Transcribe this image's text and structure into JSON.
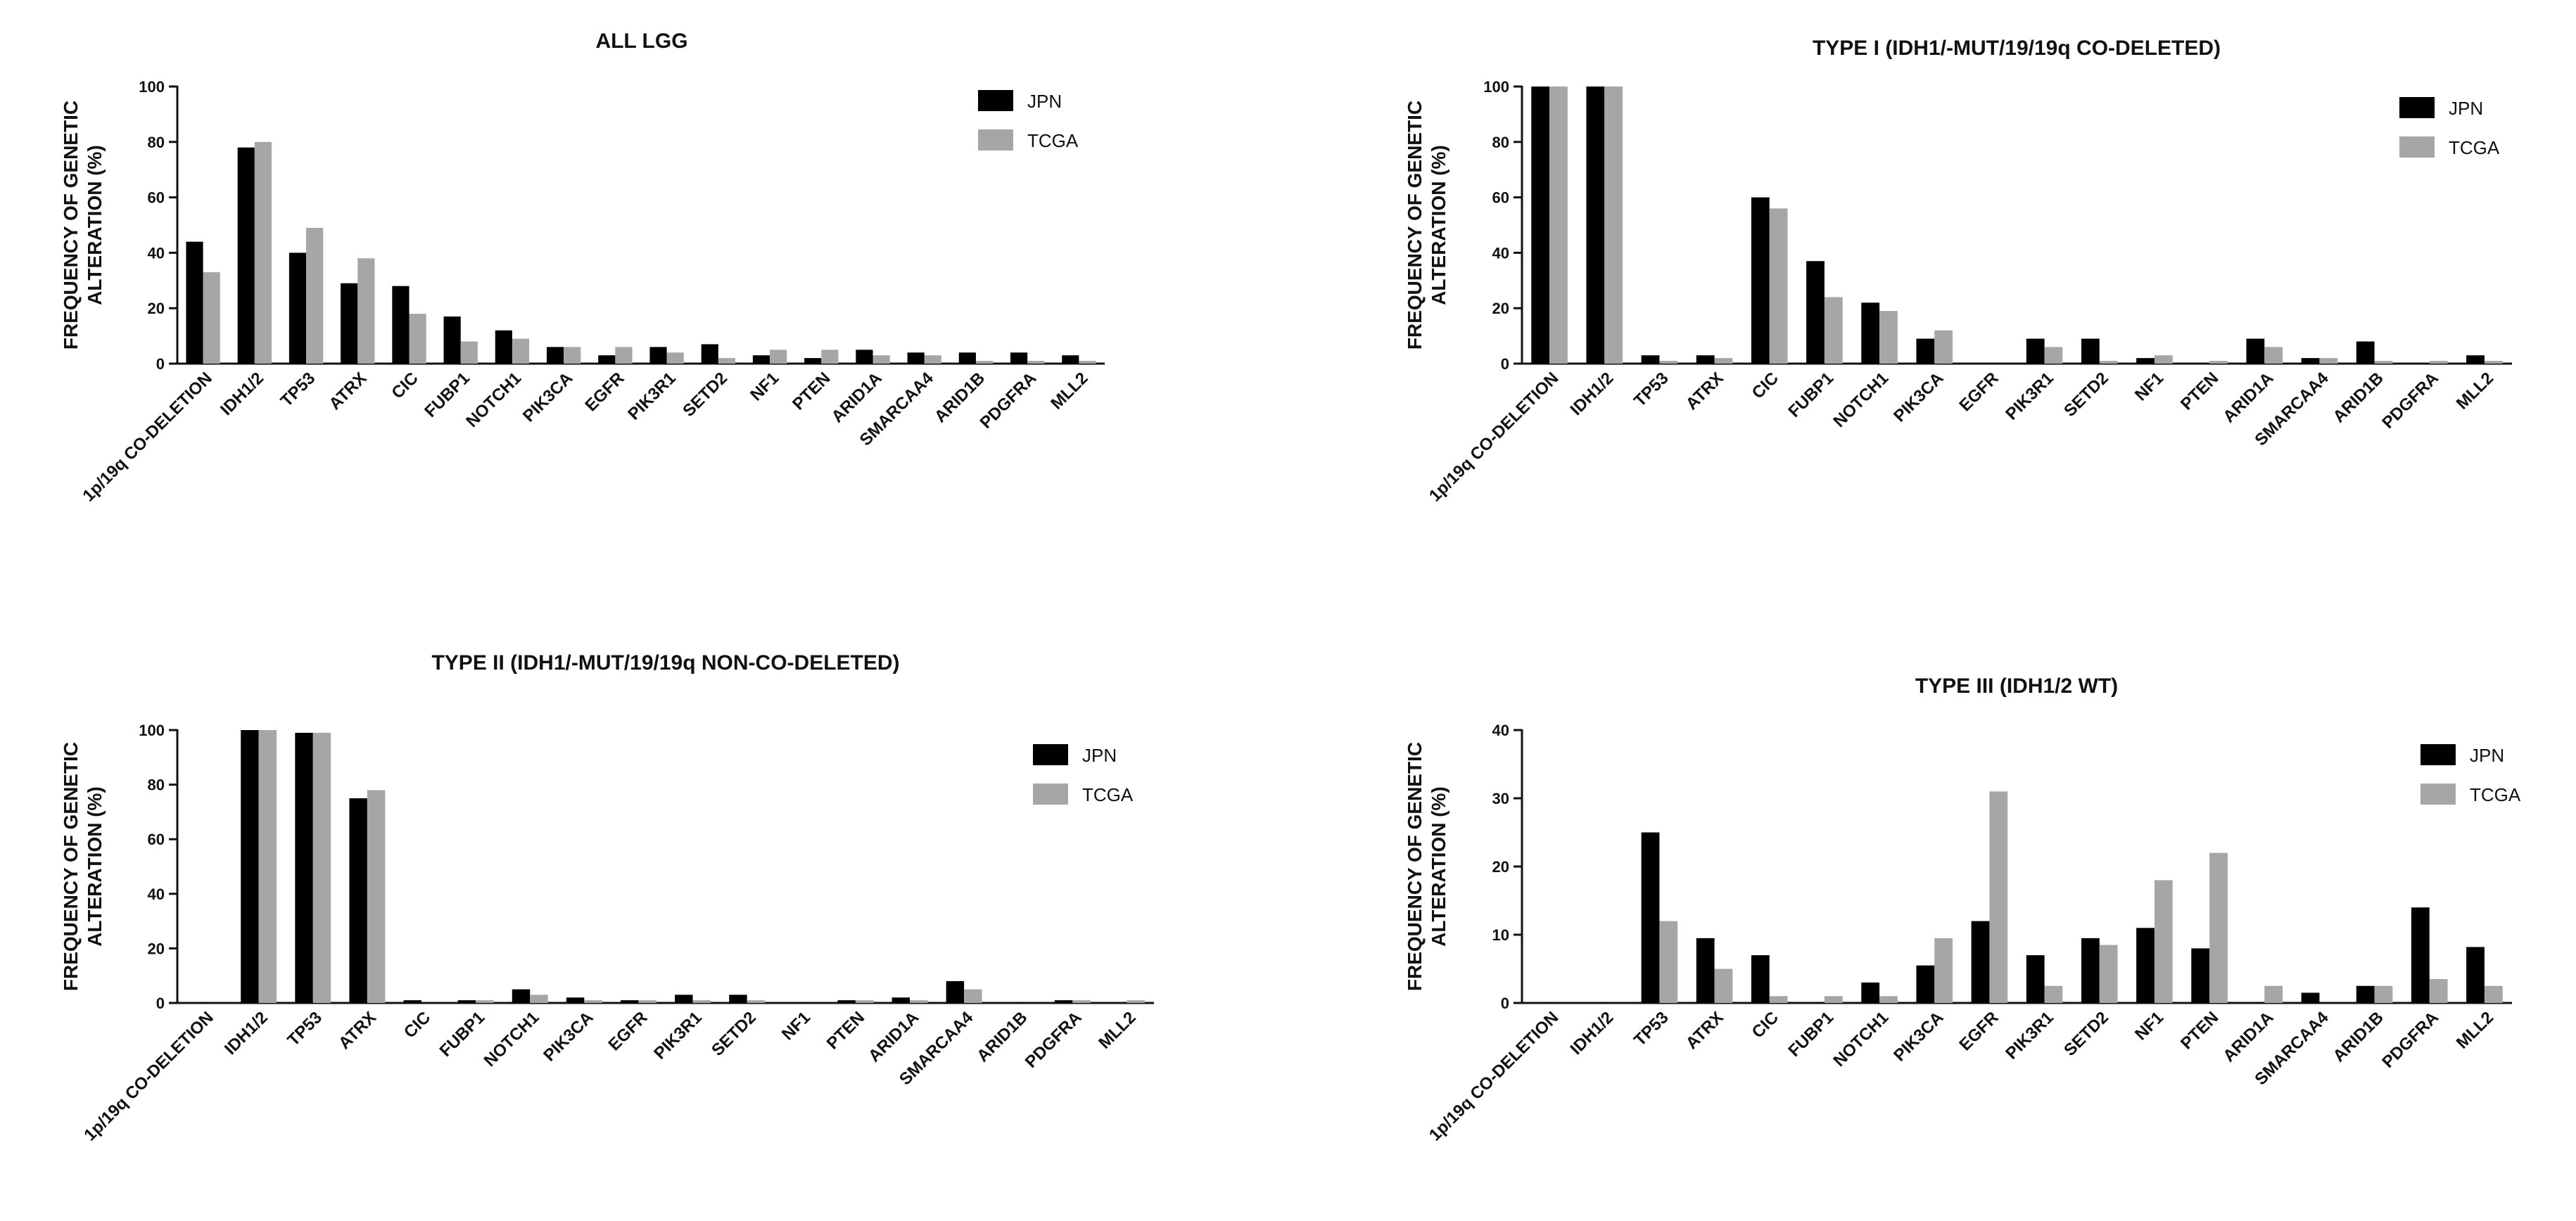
{
  "chart_data": [
    {
      "type": "bar",
      "title": "ALL  LGG",
      "ylabel": "FREQUENCY OF GENETIC ALTERATION (%)",
      "ylabel_lines": [
        "FREQUENCY OF GENETIC",
        "ALTERATION (%)"
      ],
      "ylim": [
        0,
        100
      ],
      "yticks": [
        0,
        20,
        40,
        60,
        80,
        100
      ],
      "categories": [
        "1p/19q CO-DELETION",
        "IDH1/2",
        "TP53",
        "ATRX",
        "CIC",
        "FUBP1",
        "NOTCH1",
        "PIK3CA",
        "EGFR",
        "PIK3R1",
        "SETD2",
        "NF1",
        "PTEN",
        "ARID1A",
        "SMARCAA4",
        "ARID1B",
        "PDGFRA",
        "MLL2"
      ],
      "series": [
        {
          "name": "JPN",
          "color": "#000000",
          "values": [
            44,
            78,
            40,
            29,
            28,
            17,
            12,
            6,
            3,
            6,
            7,
            3,
            2,
            5,
            4,
            4,
            4,
            3
          ]
        },
        {
          "name": "TCGA",
          "color": "#a6a6a6",
          "values": [
            33,
            80,
            49,
            38,
            18,
            8,
            9,
            6,
            6,
            4,
            2,
            5,
            5,
            3,
            3,
            1,
            1,
            1
          ]
        }
      ]
    },
    {
      "type": "bar",
      "title": "TYPE I (IDH1/-MUT/19/19q CO-DELETED)",
      "ylabel": "FREQUENCY OF GENETIC ALTERATION (%)",
      "ylabel_lines": [
        "FREQUENCY OF GENETIC",
        "ALTERATION (%)"
      ],
      "ylim": [
        0,
        100
      ],
      "yticks": [
        0,
        20,
        40,
        60,
        80,
        100
      ],
      "categories": [
        "1p/19q CO-DELETION",
        "IDH1/2",
        "TP53",
        "ATRX",
        "CIC",
        "FUBP1",
        "NOTCH1",
        "PIK3CA",
        "EGFR",
        "PIK3R1",
        "SETD2",
        "NF1",
        "PTEN",
        "ARID1A",
        "SMARCAA4",
        "ARID1B",
        "PDGFRA",
        "MLL2"
      ],
      "series": [
        {
          "name": "JPN",
          "color": "#000000",
          "values": [
            100,
            100,
            3,
            3,
            60,
            37,
            22,
            9,
            0,
            9,
            9,
            2,
            0,
            9,
            2,
            8,
            0,
            3
          ]
        },
        {
          "name": "TCGA",
          "color": "#a6a6a6",
          "values": [
            100,
            100,
            1,
            2,
            56,
            24,
            19,
            12,
            0,
            6,
            1,
            3,
            1,
            6,
            2,
            1,
            1,
            1
          ]
        }
      ]
    },
    {
      "type": "bar",
      "title": "TYPE II (IDH1/-MUT/19/19q NON-CO-DELETED)",
      "ylabel": "FREQUENCY OF GENETIC ALTERATION (%)",
      "ylabel_lines": [
        "FREQUENCY OF GENETIC",
        "ALTERATION (%)"
      ],
      "ylim": [
        0,
        100
      ],
      "yticks": [
        0,
        20,
        40,
        60,
        80,
        100
      ],
      "categories": [
        "1p/19q CO-DELETION",
        "IDH1/2",
        "TP53",
        "ATRX",
        "CIC",
        "FUBP1",
        "NOTCH1",
        "PIK3CA",
        "EGFR",
        "PIK3R1",
        "SETD2",
        "NF1",
        "PTEN",
        "ARID1A",
        "SMARCAA4",
        "ARID1B",
        "PDGFRA",
        "MLL2"
      ],
      "series": [
        {
          "name": "JPN",
          "color": "#000000",
          "values": [
            0,
            100,
            99,
            75,
            1,
            1,
            5,
            2,
            1,
            3,
            3,
            0,
            1,
            2,
            8,
            0,
            1,
            0
          ]
        },
        {
          "name": "TCGA",
          "color": "#a6a6a6",
          "values": [
            0,
            100,
            99,
            78,
            0,
            1,
            3,
            1,
            1,
            1,
            1,
            0,
            1,
            1,
            5,
            0,
            1,
            1
          ]
        }
      ]
    },
    {
      "type": "bar",
      "title": "TYPE III (IDH1/2 WT)",
      "ylabel": "FREQUENCY OF GENETIC ALTERATION (%)",
      "ylabel_lines": [
        "FREQUENCY OF GENETIC",
        "ALTERATION (%)"
      ],
      "ylim": [
        0,
        40
      ],
      "yticks": [
        0,
        10,
        20,
        30,
        40
      ],
      "categories": [
        "1p/19q CO-DELETION",
        "IDH1/2",
        "TP53",
        "ATRX",
        "CIC",
        "FUBP1",
        "NOTCH1",
        "PIK3CA",
        "EGFR",
        "PIK3R1",
        "SETD2",
        "NF1",
        "PTEN",
        "ARID1A",
        "SMARCAA4",
        "ARID1B",
        "PDGFRA",
        "MLL2"
      ],
      "series": [
        {
          "name": "JPN",
          "color": "#000000",
          "values": [
            0,
            0,
            25,
            9.5,
            7,
            0,
            3,
            5.5,
            12,
            7,
            9.5,
            11,
            8,
            0,
            1.5,
            2.5,
            14,
            8.2
          ]
        },
        {
          "name": "TCGA",
          "color": "#a6a6a6",
          "values": [
            0,
            0,
            12,
            5,
            1,
            1,
            1,
            9.5,
            31,
            2.5,
            8.5,
            18,
            22,
            2.5,
            0,
            2.5,
            3.5,
            2.5
          ]
        }
      ]
    }
  ]
}
